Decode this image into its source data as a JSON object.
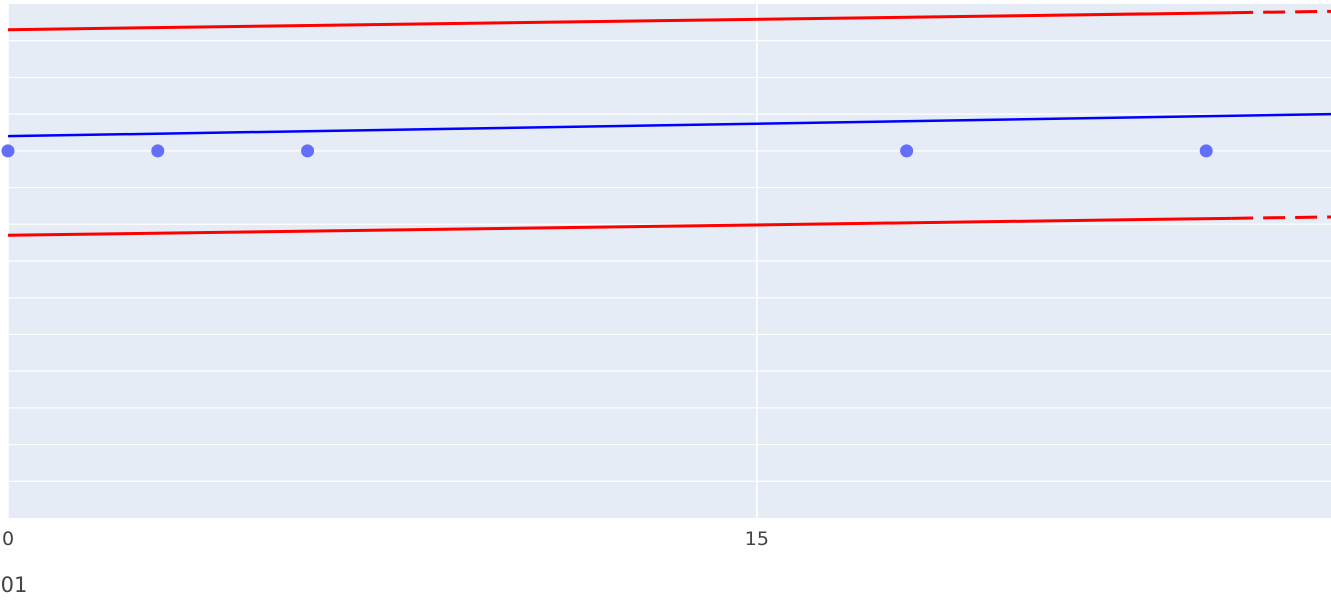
{
  "chart_data": {
    "type": "scatter",
    "title": "",
    "xlabel": "",
    "ylabel": "",
    "x_tick_labels": [
      "0",
      "15"
    ],
    "x_label_fragment": "01",
    "xlim": [
      0,
      26.5
    ],
    "ylim": [
      -6,
      1
    ],
    "grid": true,
    "colors": {
      "plot_background": "#e5ecf6",
      "grid": "#ffffff",
      "points": "#636efa",
      "fit_line": "#0000ff",
      "bound_lines": "#ff0000",
      "tick_text": "#444444"
    },
    "series": [
      {
        "kind": "markers",
        "x": [
          0,
          3,
          6,
          18,
          24
        ],
        "y": [
          -1,
          -1,
          -1,
          -1,
          -1
        ]
      },
      {
        "kind": "line",
        "x": [
          0,
          26.5
        ],
        "y": [
          -0.8,
          -0.5
        ]
      },
      {
        "kind": "line",
        "x": [
          0,
          26.5
        ],
        "y": [
          0.65,
          0.9
        ],
        "dash_from_x": 24.5
      },
      {
        "kind": "line",
        "x": [
          0,
          26.5
        ],
        "y": [
          -2.15,
          -1.9
        ],
        "dash_from_x": 24.5
      }
    ]
  }
}
